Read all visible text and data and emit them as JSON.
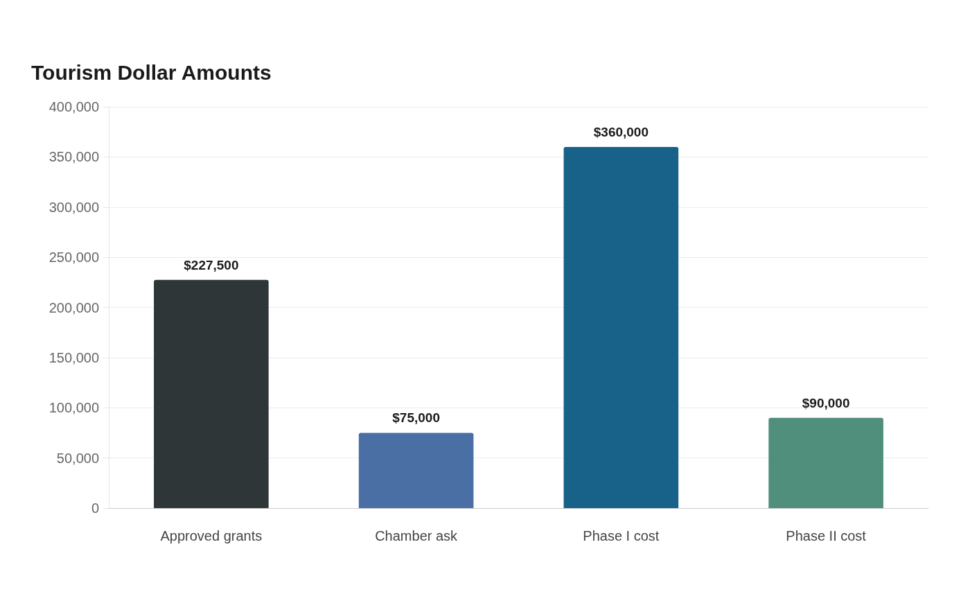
{
  "chart_data": {
    "type": "bar",
    "title": "Tourism Dollar Amounts",
    "categories": [
      "Approved grants",
      "Chamber ask",
      "Phase I cost",
      "Phase II cost"
    ],
    "values": [
      227500,
      75000,
      360000,
      90000
    ],
    "colors": [
      "#2e3638",
      "#4a6fa5",
      "#18628a",
      "#4f8f7c"
    ],
    "value_labels": [
      "$227,500",
      "$75,000",
      "$360,000",
      "$90,000"
    ],
    "ylim": [
      0,
      400000
    ],
    "yticks": [
      0,
      {
        "value": 50000,
        "label": "50,000"
      },
      {
        "value": 100000,
        "label": "100,000"
      },
      {
        "value": 150000,
        "label": "150,000"
      },
      {
        "value": 200000,
        "label": "200,000"
      },
      {
        "value": 250000,
        "label": "250,000"
      },
      {
        "value": 300000,
        "label": "300,000"
      },
      {
        "value": 350000,
        "label": "350,000"
      },
      {
        "value": 400000,
        "label": "400,000"
      }
    ],
    "grid": "y"
  }
}
